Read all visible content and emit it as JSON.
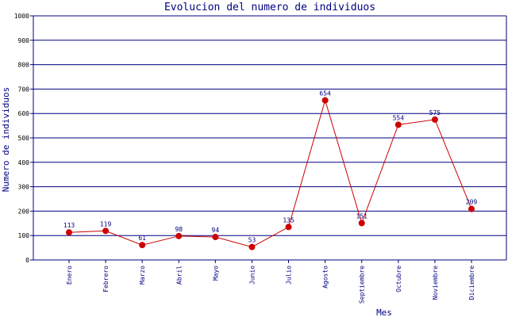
{
  "chart_data": {
    "type": "line",
    "title": "Evolucion del numero de individuos",
    "xlabel": "Mes",
    "ylabel": "Numero de individuos",
    "categories": [
      "Enero",
      "Febrero",
      "Marzo",
      "Abril",
      "Mayo",
      "Junio",
      "Julio",
      "Agosto",
      "Septiembre",
      "Octubre",
      "Noviembre",
      "Diciembre"
    ],
    "series": [
      {
        "values": [
          113,
          119,
          61,
          98,
          94,
          53,
          135,
          654,
          151,
          554,
          575,
          209
        ]
      }
    ],
    "ylim": [
      0,
      1000
    ],
    "yticks": [
      0,
      100,
      200,
      300,
      400,
      500,
      600,
      700,
      800,
      900,
      1000
    ],
    "grid": true,
    "legend": "none",
    "colors": {
      "line": "#cc0000",
      "marker": "#cc0000",
      "grid": "#000080",
      "text": "#000080"
    }
  }
}
